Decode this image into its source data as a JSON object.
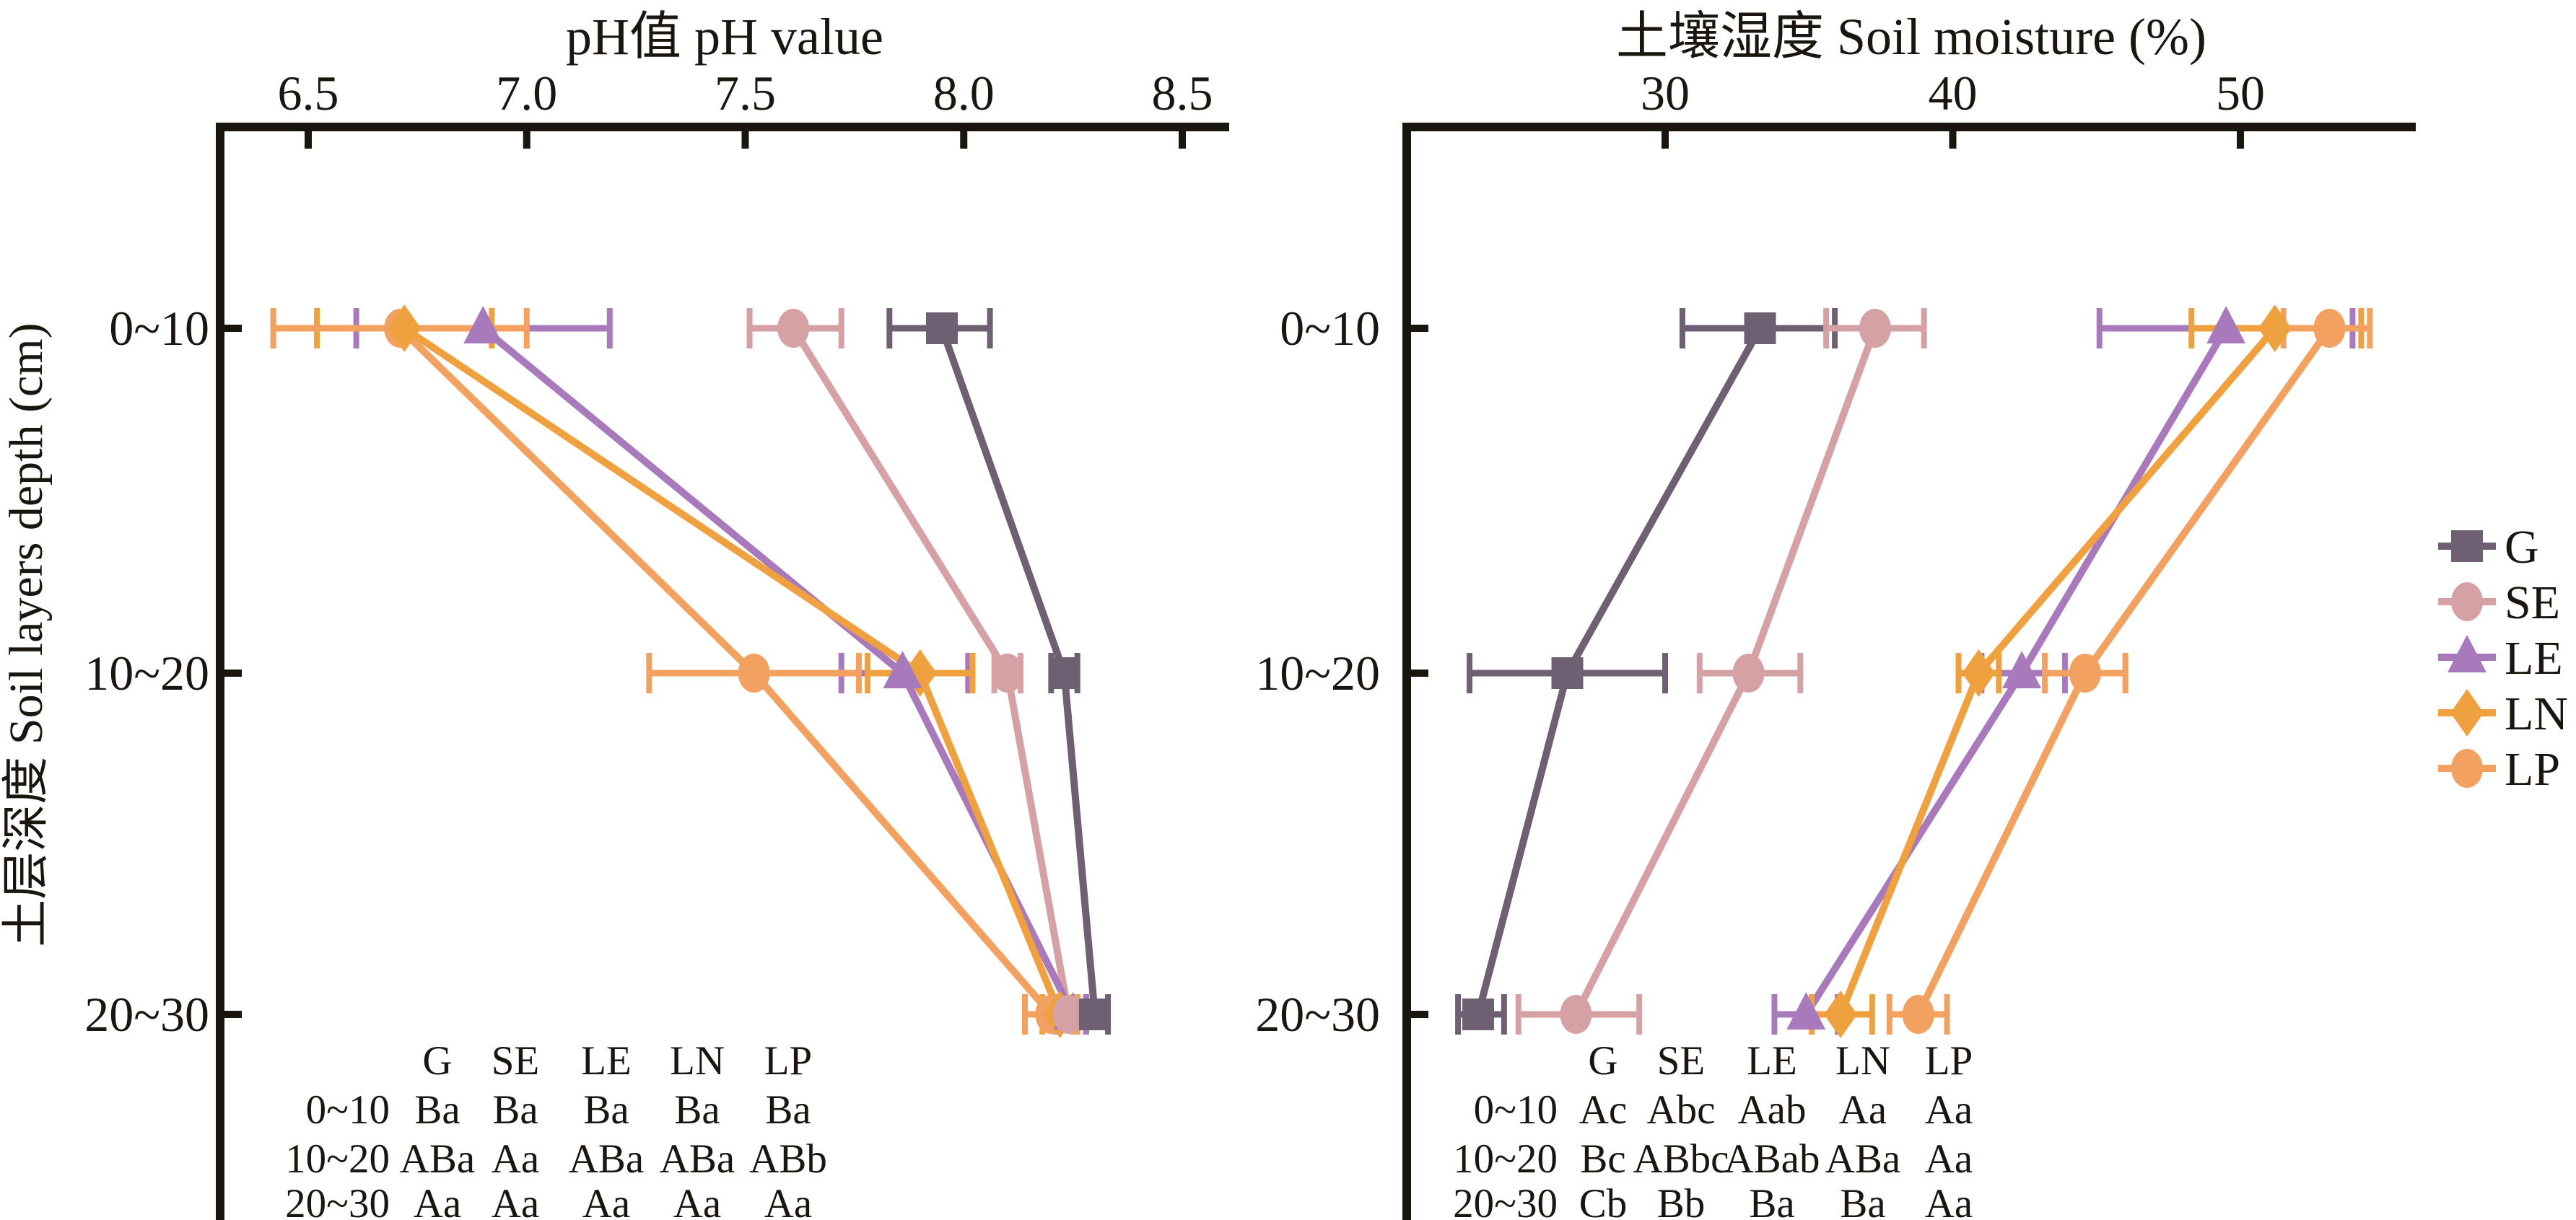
{
  "figure": {
    "background": "#ffffff",
    "ink_color": "#1b150f",
    "y_axis_title": "土层深度 Soil layers depth (cm)"
  },
  "legend": {
    "items": [
      {
        "label": "G",
        "marker": "square",
        "color": "#6E6072"
      },
      {
        "label": "SE",
        "marker": "circle",
        "color": "#D5A1A4"
      },
      {
        "label": "LE",
        "marker": "triangle",
        "color": "#A87ABB"
      },
      {
        "label": "LN",
        "marker": "diamond",
        "color": "#EFA13F"
      },
      {
        "label": "LP",
        "marker": "circle",
        "color": "#F3A160"
      }
    ]
  },
  "chart_data": [
    {
      "type": "line",
      "orientation": "horizontal-depth-profile",
      "title": "pH值 pH value",
      "xlabel": "pH值 pH value",
      "ylabel": "土层深度 Soil layers depth (cm)",
      "categories": [
        "0~10",
        "10~20",
        "20~30"
      ],
      "x_ticks": [
        6.5,
        7.0,
        7.5,
        8.0,
        8.5
      ],
      "x_range": [
        6.3,
        8.61
      ],
      "grid": false,
      "legend_position": "outside-right",
      "series": [
        {
          "name": "G",
          "marker": "square",
          "color": "#6E6072",
          "values": [
            7.95,
            8.23,
            8.3
          ],
          "err_low": [
            7.83,
            8.2,
            8.28
          ],
          "err_high": [
            8.06,
            8.26,
            8.33
          ]
        },
        {
          "name": "SE",
          "marker": "circle",
          "color": "#D5A1A4",
          "values": [
            7.61,
            8.1,
            8.24
          ],
          "err_low": [
            7.51,
            8.07,
            8.21
          ],
          "err_high": [
            7.72,
            8.13,
            8.26
          ]
        },
        {
          "name": "LE",
          "marker": "triangle",
          "color": "#A87ABB",
          "values": [
            6.9,
            7.86,
            8.25
          ],
          "err_low": [
            6.61,
            7.72,
            8.22
          ],
          "err_high": [
            7.19,
            8.01,
            8.28
          ]
        },
        {
          "name": "LN",
          "marker": "diamond",
          "color": "#EFA13F",
          "values": [
            6.72,
            7.9,
            8.22
          ],
          "err_low": [
            6.52,
            7.78,
            8.18
          ],
          "err_high": [
            6.92,
            8.02,
            8.25
          ]
        },
        {
          "name": "LP",
          "marker": "circle",
          "color": "#F3A160",
          "values": [
            6.71,
            7.52,
            8.2
          ],
          "err_low": [
            6.42,
            7.28,
            8.14
          ],
          "err_high": [
            7.0,
            7.76,
            8.26
          ]
        }
      ],
      "sig_table": {
        "header": [
          "G",
          "SE",
          "LE",
          "LN",
          "LP"
        ],
        "rows": [
          {
            "depth": "0~10",
            "cells": [
              "Ba",
              "Ba",
              "Ba",
              "Ba",
              "Ba"
            ]
          },
          {
            "depth": "10~20",
            "cells": [
              "ABa",
              "Aa",
              "ABa",
              "ABa",
              "ABb"
            ]
          },
          {
            "depth": "20~30",
            "cells": [
              "Aa",
              "Aa",
              "Aa",
              "Aa",
              "Aa"
            ]
          }
        ]
      }
    },
    {
      "type": "line",
      "orientation": "horizontal-depth-profile",
      "title": "土壤湿度 Soil moisture (%)",
      "xlabel": "土壤湿度 Soil moisture (%)",
      "ylabel": "土层深度 Soil layers depth (cm)",
      "categories": [
        "0~10",
        "10~20",
        "20~30"
      ],
      "x_ticks": [
        30,
        40,
        50
      ],
      "x_range": [
        21,
        56.1
      ],
      "grid": false,
      "legend_position": "outside-right",
      "series": [
        {
          "name": "G",
          "marker": "square",
          "color": "#6E6072",
          "values": [
            33.3,
            26.6,
            23.5
          ],
          "err_low": [
            30.6,
            23.2,
            22.8
          ],
          "err_high": [
            35.9,
            30.0,
            24.4
          ]
        },
        {
          "name": "SE",
          "marker": "circle",
          "color": "#D5A1A4",
          "values": [
            37.3,
            32.9,
            26.9
          ],
          "err_low": [
            35.6,
            31.2,
            24.9
          ],
          "err_high": [
            39.0,
            34.7,
            29.1
          ]
        },
        {
          "name": "LE",
          "marker": "triangle",
          "color": "#A87ABB",
          "values": [
            49.5,
            42.4,
            34.9
          ],
          "err_low": [
            45.1,
            41.0,
            33.8
          ],
          "err_high": [
            53.9,
            43.9,
            36.0
          ]
        },
        {
          "name": "LN",
          "marker": "diamond",
          "color": "#EFA13F",
          "values": [
            51.2,
            40.9,
            36.1
          ],
          "err_low": [
            48.3,
            40.2,
            35.1
          ],
          "err_high": [
            54.2,
            41.6,
            37.2
          ]
        },
        {
          "name": "LP",
          "marker": "circle",
          "color": "#F3A160",
          "values": [
            53.1,
            44.6,
            38.8
          ],
          "err_low": [
            51.5,
            43.2,
            37.8
          ],
          "err_high": [
            54.5,
            46.0,
            39.8
          ]
        }
      ],
      "sig_table": {
        "header": [
          "G",
          "SE",
          "LE",
          "LN",
          "LP"
        ],
        "rows": [
          {
            "depth": "0~10",
            "cells": [
              "Ac",
              "Abc",
              "Aab",
              "Aa",
              "Aa"
            ]
          },
          {
            "depth": "10~20",
            "cells": [
              "Bc",
              "ABbc",
              "ABab",
              "ABa",
              "Aa"
            ]
          },
          {
            "depth": "20~30",
            "cells": [
              "Cb",
              "Bb",
              "Ba",
              "Ba",
              "Aa"
            ]
          }
        ]
      }
    }
  ]
}
